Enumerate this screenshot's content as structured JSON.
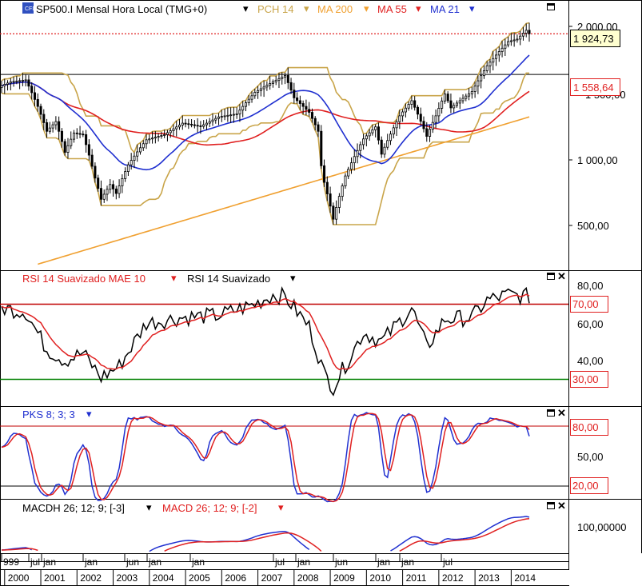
{
  "legend_main": {
    "symbol": "SP500.I Mensal Hora Local (TMG+0)",
    "items": [
      {
        "label": "PCH 14",
        "color": "#c9a54a"
      },
      {
        "label": "MA 200",
        "color": "#f0a030"
      },
      {
        "label": "MA 55",
        "color": "#e02020"
      },
      {
        "label": "MA 21",
        "color": "#2030d0"
      }
    ]
  },
  "legend_rsi": {
    "items": [
      {
        "label": "RSI 14 Suavizado MAE 10",
        "color": "#e02020"
      },
      {
        "label": "RSI 14 Suavizado",
        "color": "#000000"
      }
    ]
  },
  "legend_pks": {
    "items": [
      {
        "label": "PKS 8; 3; 3",
        "color": "#2030d0"
      }
    ]
  },
  "legend_macd": {
    "items": [
      {
        "label": "MACDH 26; 12; 9; [-3]",
        "color": "#000000"
      },
      {
        "label": "MACD 26; 12; 9; [-2]",
        "color": "#e02020"
      }
    ]
  },
  "price_labels": {
    "last": "1 924,73",
    "level": "1 558,64",
    "level_partial": "1 500,00"
  },
  "price_axis": [
    "2 000,00",
    "1 000,00",
    "500,00"
  ],
  "rsi_axis": [
    "80,00",
    "60,00",
    "40,00"
  ],
  "rsi_levels": [
    "70,00",
    "30,00"
  ],
  "pks_axis": [
    "50,00"
  ],
  "pks_levels": [
    "80,00",
    "20,00"
  ],
  "macd_axis": [
    "100,00000"
  ],
  "time_axis": {
    "months": [
      "999",
      "jul",
      "jan",
      "jan",
      "jun",
      "jan",
      "jan",
      "jul",
      "jan",
      "jun",
      "jan",
      "jan",
      "jul"
    ],
    "years": [
      "2000",
      "2001",
      "2002",
      "2003",
      "2004",
      "2005",
      "2006",
      "2007",
      "2008",
      "2009",
      "2010",
      "2011",
      "2012",
      "2013",
      "2014"
    ]
  },
  "chart_data": [
    {
      "type": "candlestick",
      "title": "SP500.I Mensal Hora Local (TMG+0)",
      "x_range": [
        "1999-12",
        "2014-07"
      ],
      "y_scale": "log",
      "y_ticks": [
        500,
        1000,
        1500,
        2000
      ],
      "price_close_keypoints": [
        [
          "1999-12",
          1470
        ],
        [
          "2000-03",
          1500
        ],
        [
          "2000-08",
          1515
        ],
        [
          "2000-12",
          1320
        ],
        [
          "2001-03",
          1160
        ],
        [
          "2001-06",
          1220
        ],
        [
          "2001-09",
          1040
        ],
        [
          "2001-12",
          1150
        ],
        [
          "2002-03",
          1140
        ],
        [
          "2002-07",
          910
        ],
        [
          "2002-09",
          815
        ],
        [
          "2002-12",
          880
        ],
        [
          "2003-02",
          840
        ],
        [
          "2003-06",
          975
        ],
        [
          "2003-12",
          1110
        ],
        [
          "2004-06",
          1140
        ],
        [
          "2004-12",
          1210
        ],
        [
          "2005-06",
          1190
        ],
        [
          "2005-12",
          1250
        ],
        [
          "2006-06",
          1270
        ],
        [
          "2006-12",
          1420
        ],
        [
          "2007-06",
          1500
        ],
        [
          "2007-10",
          1550
        ],
        [
          "2008-01",
          1380
        ],
        [
          "2008-06",
          1280
        ],
        [
          "2008-09",
          1160
        ],
        [
          "2008-10",
          970
        ],
        [
          "2008-11",
          890
        ],
        [
          "2009-02",
          735
        ],
        [
          "2009-06",
          920
        ],
        [
          "2009-12",
          1115
        ],
        [
          "2010-04",
          1187
        ],
        [
          "2010-06",
          1030
        ],
        [
          "2010-12",
          1257
        ],
        [
          "2011-04",
          1360
        ],
        [
          "2011-09",
          1130
        ],
        [
          "2011-12",
          1257
        ],
        [
          "2012-03",
          1408
        ],
        [
          "2012-05",
          1310
        ],
        [
          "2012-12",
          1426
        ],
        [
          "2013-05",
          1630
        ],
        [
          "2013-12",
          1848
        ],
        [
          "2014-03",
          1872
        ],
        [
          "2014-06",
          1960
        ],
        [
          "2014-07",
          1925
        ]
      ],
      "indicators": [
        "PCH 14",
        "MA 200",
        "MA 55",
        "MA 21"
      ],
      "horizontal_levels": [
        1924.73,
        1558.64
      ]
    },
    {
      "type": "line",
      "series": [
        {
          "name": "RSI 14 Suavizado"
        },
        {
          "name": "RSI 14 Suavizado MAE 10"
        }
      ],
      "ylim": [
        20,
        85
      ],
      "y_ticks": [
        40,
        60,
        80
      ],
      "levels": [
        70,
        30
      ],
      "rsi_keypoints": [
        [
          "1999-12",
          68
        ],
        [
          "2000-08",
          66
        ],
        [
          "2001-03",
          46
        ],
        [
          "2001-09",
          40
        ],
        [
          "2002-03",
          44
        ],
        [
          "2002-09",
          31
        ],
        [
          "2003-03",
          37
        ],
        [
          "2003-12",
          60
        ],
        [
          "2004-12",
          63
        ],
        [
          "2005-12",
          64
        ],
        [
          "2006-12",
          70
        ],
        [
          "2007-06",
          75
        ],
        [
          "2007-10",
          74
        ],
        [
          "2008-06",
          58
        ],
        [
          "2008-11",
          33
        ],
        [
          "2009-02",
          26
        ],
        [
          "2009-12",
          55
        ],
        [
          "2010-06",
          50
        ],
        [
          "2011-04",
          68
        ],
        [
          "2011-09",
          47
        ],
        [
          "2012-03",
          62
        ],
        [
          "2012-12",
          63
        ],
        [
          "2013-05",
          72
        ],
        [
          "2013-12",
          75
        ],
        [
          "2014-07",
          74
        ]
      ]
    },
    {
      "type": "line",
      "series": [
        {
          "name": "PKS 8; 3; 3"
        }
      ],
      "ylim": [
        0,
        100
      ],
      "y_ticks": [
        50
      ],
      "levels": [
        80,
        20
      ]
    },
    {
      "type": "line",
      "series": [
        {
          "name": "MACDH 26; 12; 9; [-3]"
        },
        {
          "name": "MACD 26; 12; 9; [-2]"
        }
      ],
      "y_ticks": [
        100
      ]
    }
  ]
}
